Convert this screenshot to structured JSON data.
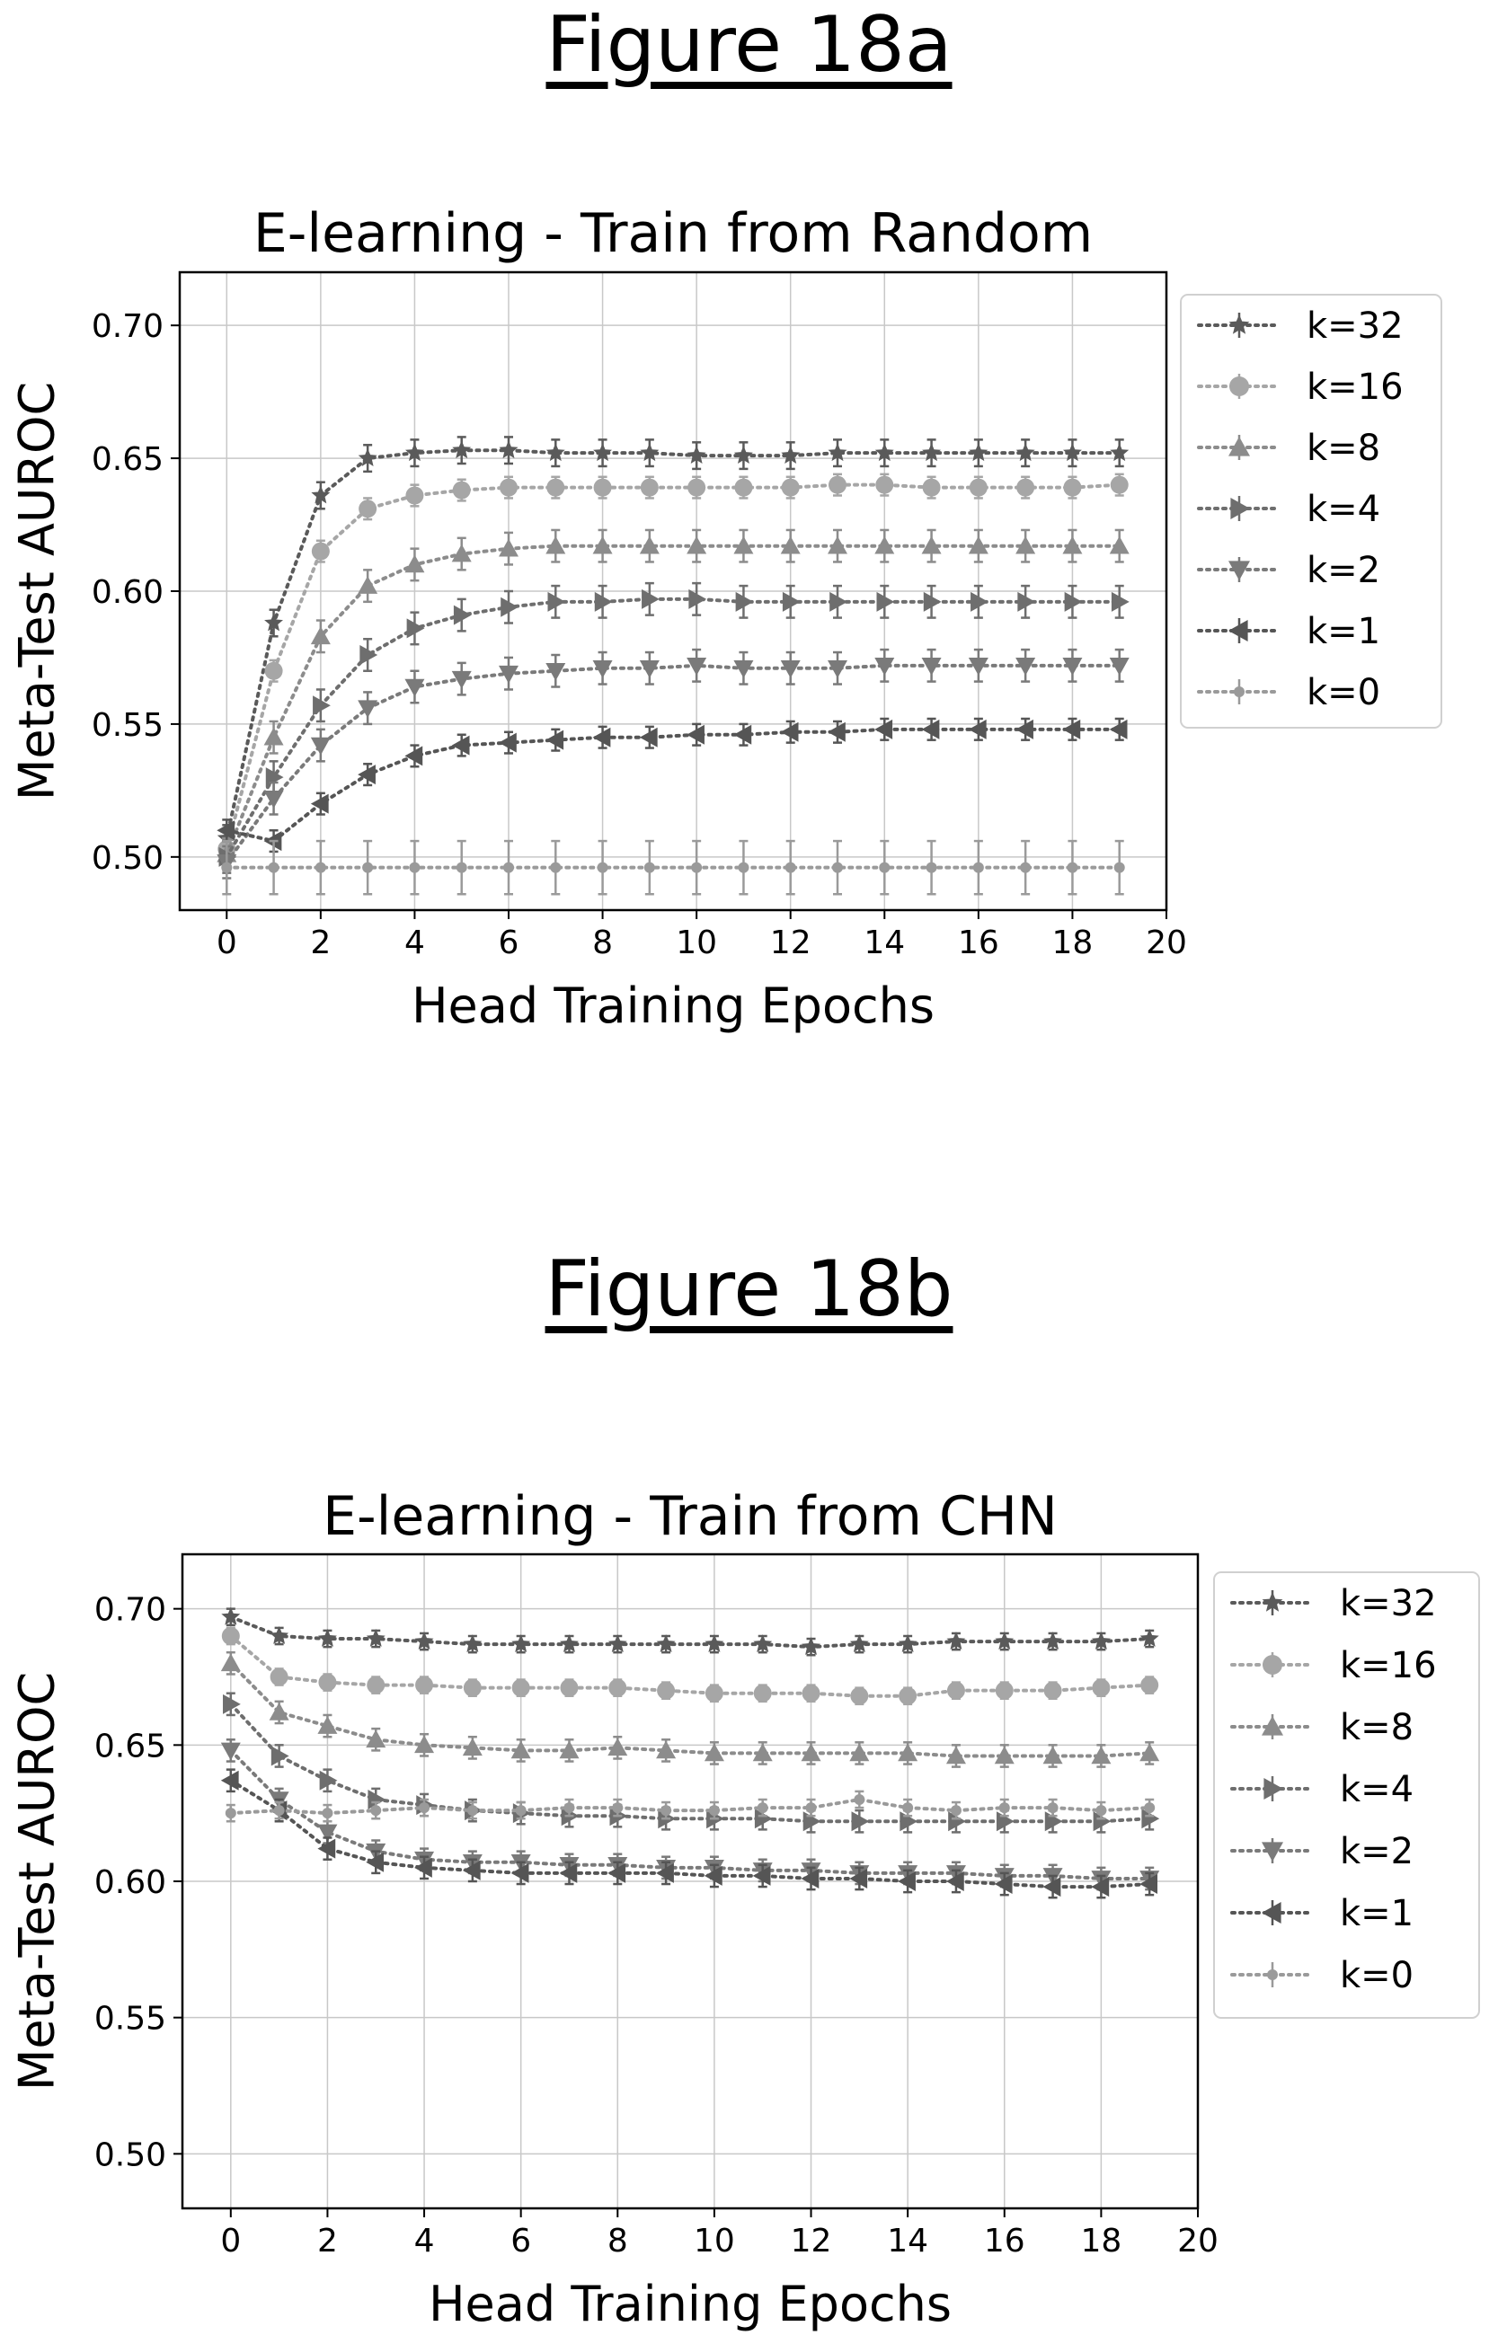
{
  "figures": [
    {
      "label": "Figure 18a"
    },
    {
      "label": "Figure 18b"
    }
  ],
  "chart_data": [
    {
      "type": "line",
      "title": "E-learning - Train from Random",
      "xlabel": "Head Training Epochs",
      "ylabel": "Meta-Test AUROC",
      "xlim": [
        -1,
        20
      ],
      "ylim": [
        0.48,
        0.72
      ],
      "xticks": [
        0,
        2,
        4,
        6,
        8,
        10,
        12,
        14,
        16,
        18,
        20
      ],
      "yticks": [
        0.5,
        0.55,
        0.6,
        0.65,
        0.7
      ],
      "grid": true,
      "legend_position": "outside-right",
      "x": [
        0,
        1,
        2,
        3,
        4,
        5,
        6,
        7,
        8,
        9,
        10,
        11,
        12,
        13,
        14,
        15,
        16,
        17,
        18,
        19
      ],
      "series": [
        {
          "name": "k=32",
          "marker": "star",
          "color": "#5a5a5a",
          "error": 0.005,
          "values": [
            0.507,
            0.588,
            0.636,
            0.65,
            0.652,
            0.653,
            0.653,
            0.652,
            0.652,
            0.652,
            0.651,
            0.651,
            0.651,
            0.652,
            0.652,
            0.652,
            0.652,
            0.652,
            0.652,
            0.652
          ]
        },
        {
          "name": "k=16",
          "marker": "circle",
          "color": "#a6a6a6",
          "error": 0.004,
          "values": [
            0.503,
            0.57,
            0.615,
            0.631,
            0.636,
            0.638,
            0.639,
            0.639,
            0.639,
            0.639,
            0.639,
            0.639,
            0.639,
            0.64,
            0.64,
            0.639,
            0.639,
            0.639,
            0.639,
            0.64
          ]
        },
        {
          "name": "k=8",
          "marker": "triangle-up",
          "color": "#8c8c8c",
          "error": 0.006,
          "values": [
            0.501,
            0.545,
            0.583,
            0.602,
            0.61,
            0.614,
            0.616,
            0.617,
            0.617,
            0.617,
            0.617,
            0.617,
            0.617,
            0.617,
            0.617,
            0.617,
            0.617,
            0.617,
            0.617,
            0.617
          ]
        },
        {
          "name": "k=4",
          "marker": "triangle-right",
          "color": "#6e6e6e",
          "error": 0.006,
          "values": [
            0.5,
            0.53,
            0.557,
            0.576,
            0.586,
            0.591,
            0.594,
            0.596,
            0.596,
            0.597,
            0.597,
            0.596,
            0.596,
            0.596,
            0.596,
            0.596,
            0.596,
            0.596,
            0.596,
            0.596
          ]
        },
        {
          "name": "k=2",
          "marker": "triangle-down",
          "color": "#7a7a7a",
          "error": 0.006,
          "values": [
            0.498,
            0.522,
            0.542,
            0.556,
            0.564,
            0.567,
            0.569,
            0.57,
            0.571,
            0.571,
            0.572,
            0.571,
            0.571,
            0.571,
            0.572,
            0.572,
            0.572,
            0.572,
            0.572,
            0.572
          ]
        },
        {
          "name": "k=1",
          "marker": "triangle-left",
          "color": "#555555",
          "error": 0.004,
          "values": [
            0.51,
            0.506,
            0.52,
            0.531,
            0.538,
            0.542,
            0.543,
            0.544,
            0.545,
            0.545,
            0.546,
            0.546,
            0.547,
            0.547,
            0.548,
            0.548,
            0.548,
            0.548,
            0.548,
            0.548
          ]
        },
        {
          "name": "k=0",
          "marker": "dot",
          "color": "#9a9a9a",
          "error": 0.01,
          "values": [
            0.496,
            0.496,
            0.496,
            0.496,
            0.496,
            0.496,
            0.496,
            0.496,
            0.496,
            0.496,
            0.496,
            0.496,
            0.496,
            0.496,
            0.496,
            0.496,
            0.496,
            0.496,
            0.496,
            0.496
          ]
        }
      ]
    },
    {
      "type": "line",
      "title": "E-learning - Train from CHN",
      "xlabel": "Head Training Epochs",
      "ylabel": "Meta-Test AUROC",
      "xlim": [
        -1,
        20
      ],
      "ylim": [
        0.48,
        0.72
      ],
      "xticks": [
        0,
        2,
        4,
        6,
        8,
        10,
        12,
        14,
        16,
        18,
        20
      ],
      "yticks": [
        0.5,
        0.55,
        0.6,
        0.65,
        0.7
      ],
      "grid": true,
      "legend_position": "outside-right",
      "x": [
        0,
        1,
        2,
        3,
        4,
        5,
        6,
        7,
        8,
        9,
        10,
        11,
        12,
        13,
        14,
        15,
        16,
        17,
        18,
        19
      ],
      "series": [
        {
          "name": "k=32",
          "marker": "star",
          "color": "#5a5a5a",
          "error": 0.003,
          "values": [
            0.697,
            0.69,
            0.689,
            0.689,
            0.688,
            0.687,
            0.687,
            0.687,
            0.687,
            0.687,
            0.687,
            0.687,
            0.686,
            0.687,
            0.687,
            0.688,
            0.688,
            0.688,
            0.688,
            0.689
          ]
        },
        {
          "name": "k=16",
          "marker": "circle",
          "color": "#a6a6a6",
          "error": 0.003,
          "values": [
            0.69,
            0.675,
            0.673,
            0.672,
            0.672,
            0.671,
            0.671,
            0.671,
            0.671,
            0.67,
            0.669,
            0.669,
            0.669,
            0.668,
            0.668,
            0.67,
            0.67,
            0.67,
            0.671,
            0.672
          ]
        },
        {
          "name": "k=8",
          "marker": "triangle-up",
          "color": "#8c8c8c",
          "error": 0.004,
          "values": [
            0.68,
            0.662,
            0.657,
            0.652,
            0.65,
            0.649,
            0.648,
            0.648,
            0.649,
            0.648,
            0.647,
            0.647,
            0.647,
            0.647,
            0.647,
            0.646,
            0.646,
            0.646,
            0.646,
            0.647
          ]
        },
        {
          "name": "k=4",
          "marker": "triangle-right",
          "color": "#6e6e6e",
          "error": 0.004,
          "values": [
            0.665,
            0.646,
            0.637,
            0.63,
            0.628,
            0.626,
            0.625,
            0.624,
            0.624,
            0.623,
            0.623,
            0.623,
            0.622,
            0.622,
            0.622,
            0.622,
            0.622,
            0.622,
            0.622,
            0.623
          ]
        },
        {
          "name": "k=2",
          "marker": "triangle-down",
          "color": "#7a7a7a",
          "error": 0.004,
          "values": [
            0.648,
            0.63,
            0.618,
            0.611,
            0.608,
            0.607,
            0.607,
            0.606,
            0.606,
            0.605,
            0.605,
            0.604,
            0.604,
            0.603,
            0.603,
            0.603,
            0.602,
            0.602,
            0.601,
            0.601
          ]
        },
        {
          "name": "k=1",
          "marker": "triangle-left",
          "color": "#555555",
          "error": 0.004,
          "values": [
            0.637,
            0.626,
            0.612,
            0.607,
            0.605,
            0.604,
            0.603,
            0.603,
            0.603,
            0.603,
            0.602,
            0.602,
            0.601,
            0.601,
            0.6,
            0.6,
            0.599,
            0.598,
            0.598,
            0.599
          ]
        },
        {
          "name": "k=0",
          "marker": "dot",
          "color": "#9a9a9a",
          "error": 0.003,
          "values": [
            0.625,
            0.626,
            0.625,
            0.626,
            0.627,
            0.626,
            0.626,
            0.627,
            0.627,
            0.626,
            0.626,
            0.627,
            0.627,
            0.63,
            0.627,
            0.626,
            0.627,
            0.627,
            0.626,
            0.627
          ]
        }
      ]
    }
  ]
}
